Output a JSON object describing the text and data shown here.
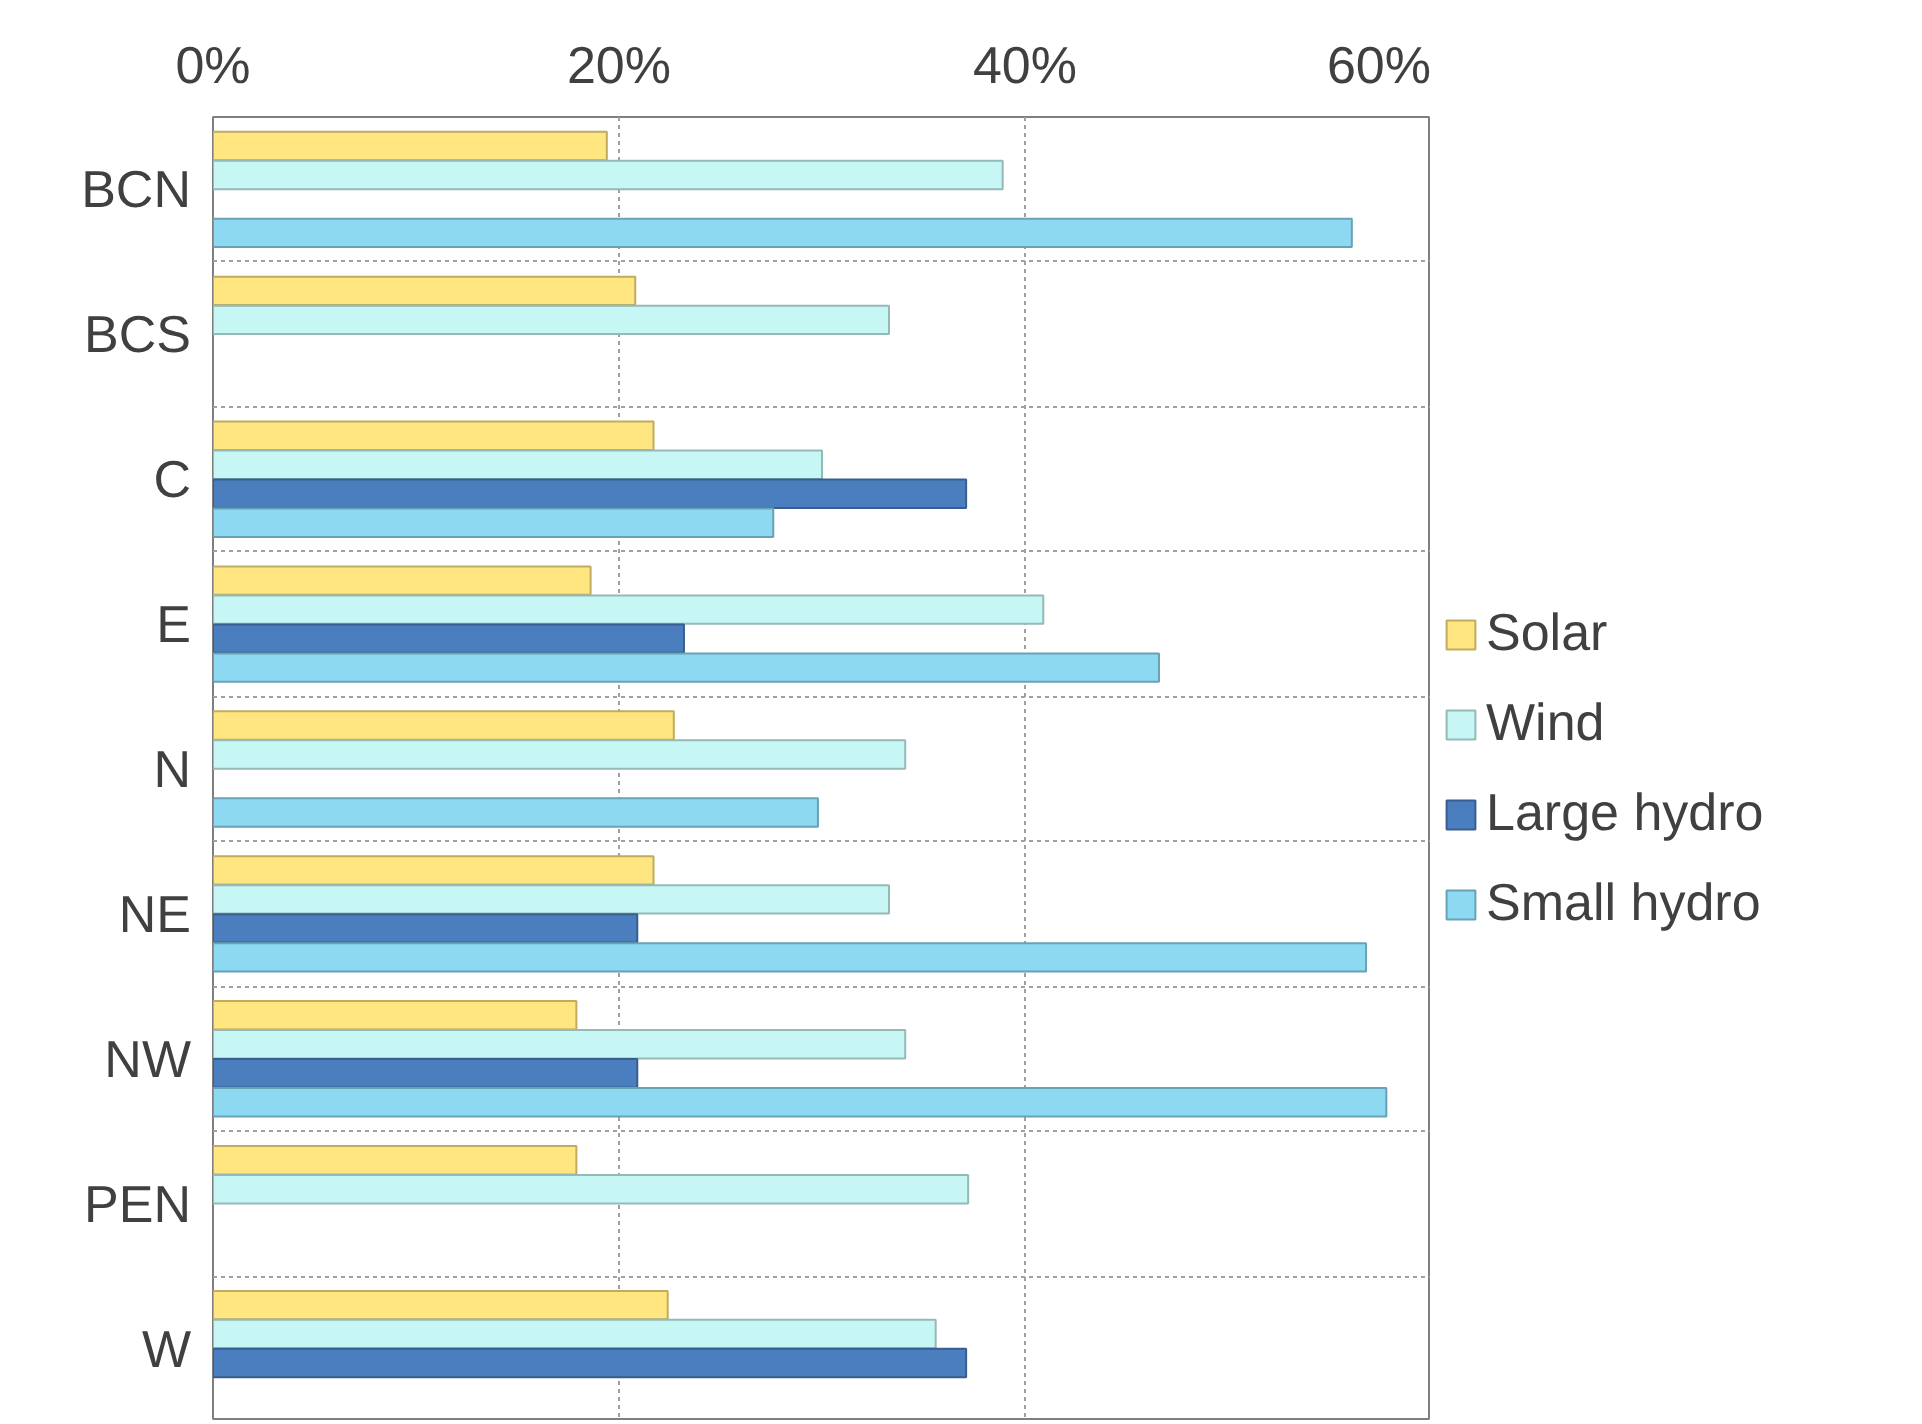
{
  "chart_data": {
    "type": "bar",
    "orientation": "horizontal",
    "categories": [
      "BCN",
      "BCS",
      "C",
      "E",
      "N",
      "NE",
      "NW",
      "PEN",
      "W"
    ],
    "series": [
      {
        "name": "Solar",
        "color": "#ffe680",
        "values": [
          19.4,
          20.8,
          21.7,
          18.6,
          22.7,
          21.7,
          17.9,
          17.9,
          22.4
        ]
      },
      {
        "name": "Wind",
        "color": "#c6f7f4",
        "values": [
          38.9,
          33.3,
          30.0,
          40.9,
          34.1,
          33.3,
          34.1,
          37.2,
          35.6
        ]
      },
      {
        "name": "Large hydro",
        "color": "#4a7ebf",
        "values": [
          null,
          null,
          37.1,
          23.2,
          null,
          20.9,
          20.9,
          null,
          37.1
        ]
      },
      {
        "name": "Small hydro",
        "color": "#8dd9f2",
        "values": [
          56.1,
          null,
          27.6,
          46.6,
          29.8,
          56.8,
          57.8,
          null,
          null
        ]
      }
    ],
    "xlim": [
      0,
      60
    ],
    "xticks": [
      {
        "value": 0,
        "label": "0%"
      },
      {
        "value": 20,
        "label": "20%"
      },
      {
        "value": 40,
        "label": "40%"
      },
      {
        "value": 60,
        "label": "60%"
      }
    ],
    "grid": true,
    "legend": "right"
  }
}
